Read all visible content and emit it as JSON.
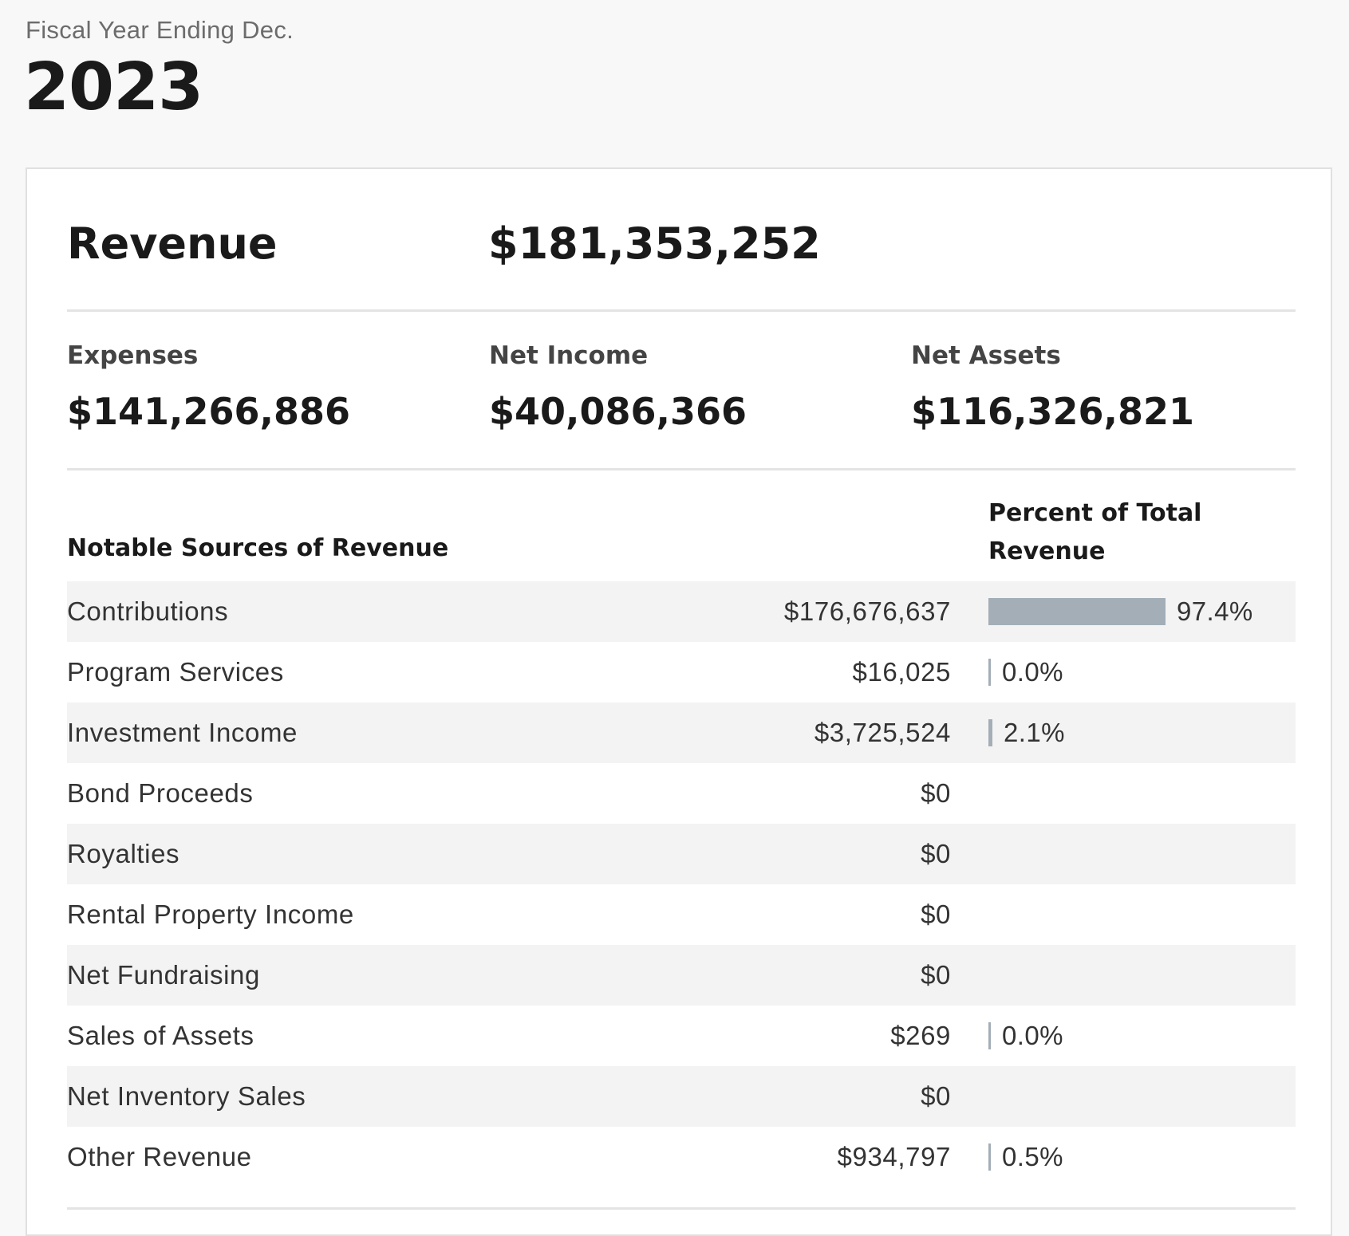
{
  "header": {
    "fiscal_label": "Fiscal Year Ending Dec.",
    "year": "2023"
  },
  "summary": {
    "revenue_label": "Revenue",
    "revenue_value": "$181,353,252",
    "expenses_label": "Expenses",
    "expenses_value": "$141,266,886",
    "net_income_label": "Net Income",
    "net_income_value": "$40,086,366",
    "net_assets_label": "Net Assets",
    "net_assets_value": "$116,326,821"
  },
  "table": {
    "col_sources": "Notable Sources of Revenue",
    "col_percent": "Percent of Total Revenue",
    "bar_color": "#a3aeb7",
    "rows": [
      {
        "label": "Contributions",
        "amount": "$176,676,637",
        "percent": "97.4%",
        "fraction": 0.974
      },
      {
        "label": "Program Services",
        "amount": "$16,025",
        "percent": "0.0%",
        "fraction": 0.0
      },
      {
        "label": "Investment Income",
        "amount": "$3,725,524",
        "percent": "2.1%",
        "fraction": 0.021
      },
      {
        "label": "Bond Proceeds",
        "amount": "$0",
        "percent": "",
        "fraction": null
      },
      {
        "label": "Royalties",
        "amount": "$0",
        "percent": "",
        "fraction": null
      },
      {
        "label": "Rental Property Income",
        "amount": "$0",
        "percent": "",
        "fraction": null
      },
      {
        "label": "Net Fundraising",
        "amount": "$0",
        "percent": "",
        "fraction": null
      },
      {
        "label": "Sales of Assets",
        "amount": "$269",
        "percent": "0.0%",
        "fraction": 0.0
      },
      {
        "label": "Net Inventory Sales",
        "amount": "$0",
        "percent": "",
        "fraction": null
      },
      {
        "label": "Other Revenue",
        "amount": "$934,797",
        "percent": "0.5%",
        "fraction": 0.005
      }
    ]
  }
}
